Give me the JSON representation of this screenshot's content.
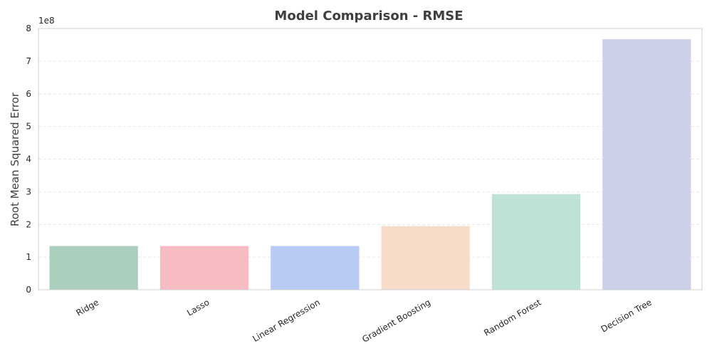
{
  "chart_data": {
    "type": "bar",
    "title": "Model Comparison - RMSE",
    "xlabel": "",
    "ylabel": "Root Mean Squared Error",
    "y_scale_label": "1e8",
    "ylim": [
      0,
      800000000
    ],
    "yticks": [
      0,
      100000000,
      200000000,
      300000000,
      400000000,
      500000000,
      600000000,
      700000000,
      800000000
    ],
    "ytick_labels": [
      "0",
      "1",
      "2",
      "3",
      "4",
      "5",
      "6",
      "7",
      "8"
    ],
    "categories": [
      "Ridge",
      "Lasso",
      "Linear Regression",
      "Gradient Boosting",
      "Random Forest",
      "Decision Tree"
    ],
    "values": [
      134000000,
      134000000,
      134000000,
      195000000,
      293000000,
      767000000
    ],
    "colors": [
      "#abcfbd",
      "#f7bcc2",
      "#b7cbf5",
      "#f7dcc9",
      "#bee3d5",
      "#ccd0e8"
    ],
    "grid": true,
    "legend": "none"
  }
}
